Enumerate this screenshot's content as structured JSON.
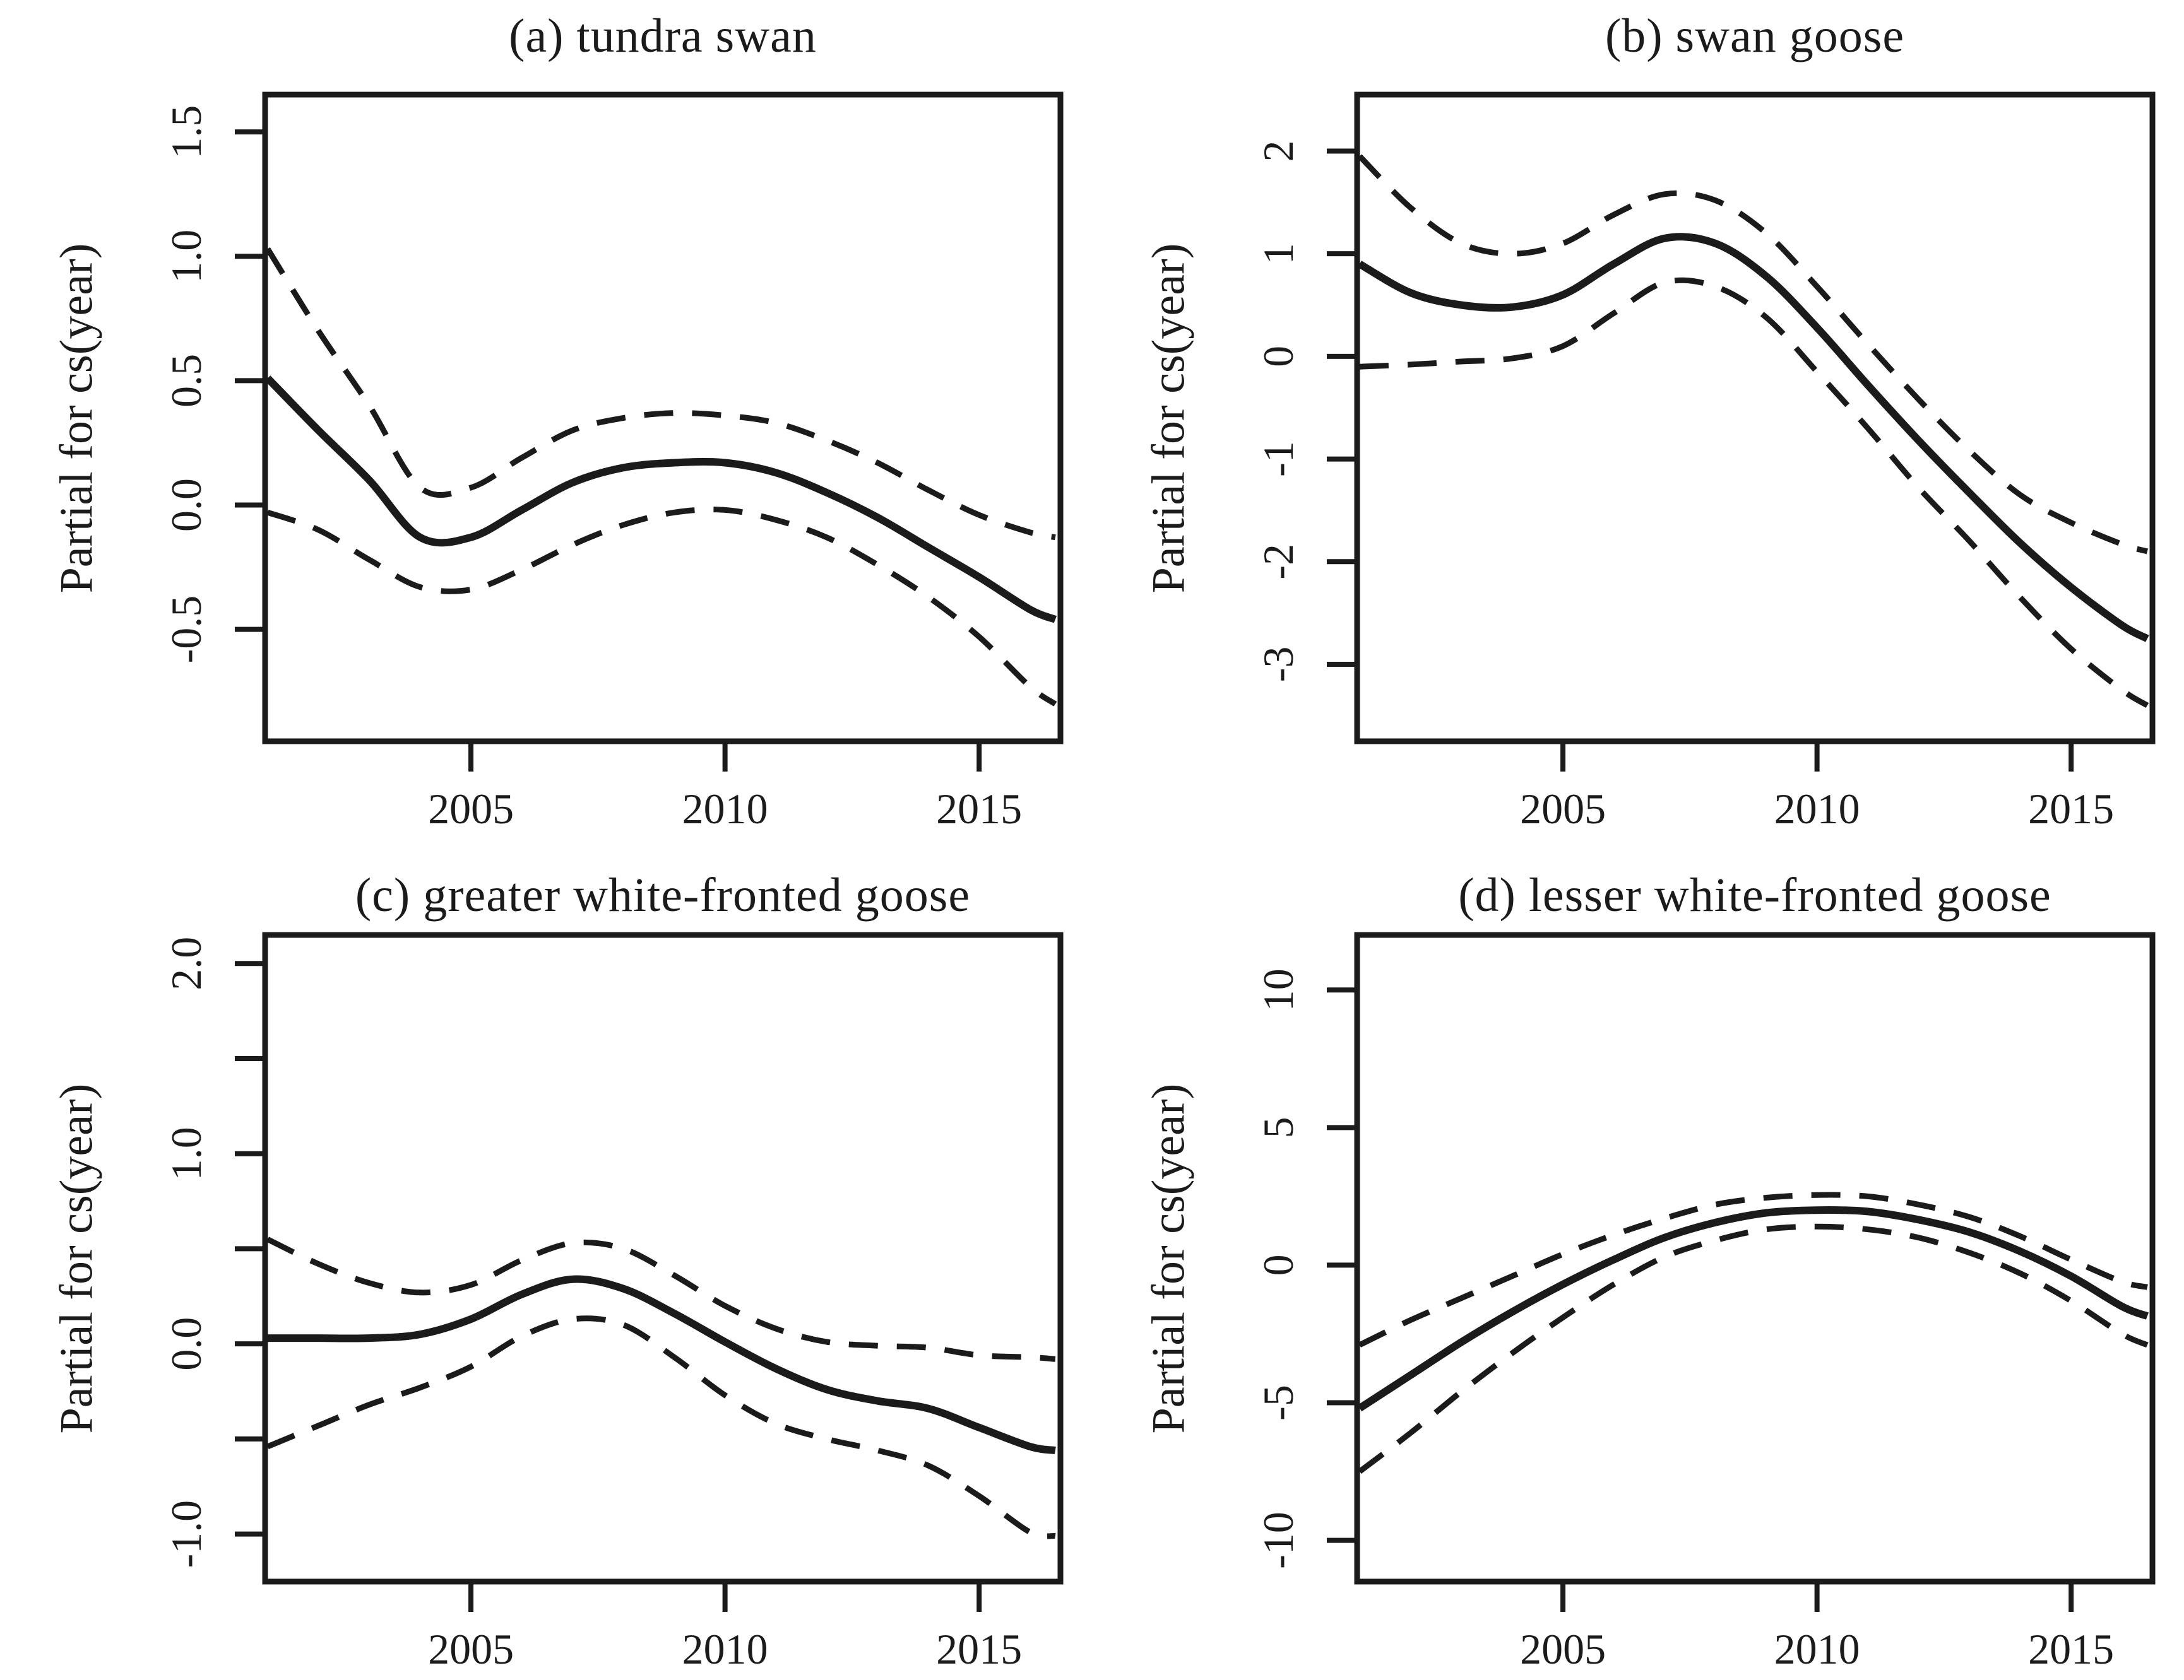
{
  "figure": {
    "background": "#ffffff",
    "line_color": "#1b1b1b",
    "layout": "2x2-grid",
    "shared_y_axis_label": "Partial for cs(year)"
  },
  "chart_data": [
    {
      "type": "line",
      "panel_label": "a",
      "title": "(a) tundra swan",
      "ylabel": "Partial for cs(year)",
      "xlabel": "",
      "grid": false,
      "legend": null,
      "xlim": [
        2000.95,
        2016.6
      ],
      "ylim": [
        -0.95,
        1.65
      ],
      "xticks": [
        {
          "value": 2005,
          "label": "2005"
        },
        {
          "value": 2010,
          "label": "2010"
        },
        {
          "value": 2015,
          "label": "2015"
        }
      ],
      "yticks": [
        {
          "value": 1.5,
          "label": "1.5"
        },
        {
          "value": 1.0,
          "label": "1.0"
        },
        {
          "value": 0.5,
          "label": "0.5"
        },
        {
          "value": 0.0,
          "label": "0.0"
        },
        {
          "value": -0.5,
          "label": "-0.5"
        }
      ],
      "x": [
        2001,
        2002,
        2003,
        2004,
        2005,
        2006,
        2007,
        2008,
        2009,
        2010,
        2011,
        2012,
        2013,
        2014,
        2015,
        2016,
        2016.5
      ],
      "series": [
        {
          "name": "smooth-fit",
          "style": "solid",
          "values": [
            0.51,
            0.3,
            0.1,
            -0.13,
            -0.13,
            -0.02,
            0.09,
            0.15,
            0.17,
            0.17,
            0.13,
            0.05,
            -0.05,
            -0.17,
            -0.29,
            -0.42,
            -0.46
          ]
        },
        {
          "name": "upper-confidence-band",
          "style": "dashed",
          "values": [
            1.03,
            0.7,
            0.4,
            0.07,
            0.07,
            0.19,
            0.3,
            0.35,
            0.37,
            0.36,
            0.33,
            0.26,
            0.17,
            0.06,
            -0.04,
            -0.11,
            -0.13
          ]
        },
        {
          "name": "lower-confidence-band",
          "style": "dashed",
          "values": [
            -0.03,
            -0.1,
            -0.22,
            -0.33,
            -0.34,
            -0.26,
            -0.16,
            -0.08,
            -0.03,
            -0.02,
            -0.06,
            -0.13,
            -0.24,
            -0.37,
            -0.53,
            -0.73,
            -0.8
          ]
        }
      ]
    },
    {
      "type": "line",
      "panel_label": "b",
      "title": "(b) swan goose",
      "ylabel": "Partial for cs(year)",
      "xlabel": "",
      "grid": false,
      "legend": null,
      "xlim": [
        2000.95,
        2016.6
      ],
      "ylim": [
        -3.75,
        2.55
      ],
      "xticks": [
        {
          "value": 2005,
          "label": "2005"
        },
        {
          "value": 2010,
          "label": "2010"
        },
        {
          "value": 2015,
          "label": "2015"
        }
      ],
      "yticks": [
        {
          "value": 2,
          "label": "2"
        },
        {
          "value": 1,
          "label": "1"
        },
        {
          "value": 0,
          "label": "0"
        },
        {
          "value": -1,
          "label": "-1"
        },
        {
          "value": -2,
          "label": "-2"
        },
        {
          "value": -3,
          "label": "-3"
        }
      ],
      "x": [
        2001,
        2002,
        2003,
        2004,
        2005,
        2006,
        2007,
        2008,
        2009,
        2010,
        2011,
        2012,
        2013,
        2014,
        2015,
        2016,
        2016.5
      ],
      "series": [
        {
          "name": "smooth-fit",
          "style": "solid",
          "values": [
            0.9,
            0.62,
            0.5,
            0.48,
            0.6,
            0.9,
            1.15,
            1.1,
            0.78,
            0.28,
            -0.28,
            -0.82,
            -1.33,
            -1.82,
            -2.25,
            -2.62,
            -2.75
          ]
        },
        {
          "name": "upper-confidence-band",
          "style": "dashed",
          "values": [
            1.95,
            1.45,
            1.1,
            1.0,
            1.1,
            1.38,
            1.58,
            1.52,
            1.2,
            0.68,
            0.12,
            -0.42,
            -0.92,
            -1.35,
            -1.62,
            -1.83,
            -1.9
          ]
        },
        {
          "name": "lower-confidence-band",
          "style": "dashed",
          "values": [
            -0.1,
            -0.08,
            -0.05,
            -0.02,
            0.1,
            0.42,
            0.72,
            0.68,
            0.38,
            -0.15,
            -0.7,
            -1.28,
            -1.8,
            -2.35,
            -2.85,
            -3.25,
            -3.4
          ]
        }
      ]
    },
    {
      "type": "line",
      "panel_label": "c",
      "title": "(c) greater white-fronted goose",
      "ylabel": "Partial for cs(year)",
      "xlabel": "",
      "grid": false,
      "legend": null,
      "xlim": [
        2000.95,
        2016.6
      ],
      "ylim": [
        -1.25,
        2.15
      ],
      "xticks": [
        {
          "value": 2005,
          "label": "2005"
        },
        {
          "value": 2010,
          "label": "2010"
        },
        {
          "value": 2015,
          "label": "2015"
        }
      ],
      "yticks": [
        {
          "value": 2.0,
          "label": "2.0"
        },
        {
          "value": 1.5,
          "label": ""
        },
        {
          "value": 1.0,
          "label": "1.0"
        },
        {
          "value": 0.5,
          "label": ""
        },
        {
          "value": 0.0,
          "label": "0.0"
        },
        {
          "value": -0.5,
          "label": ""
        },
        {
          "value": -1.0,
          "label": "-1.0"
        }
      ],
      "x": [
        2001,
        2002,
        2003,
        2004,
        2005,
        2006,
        2007,
        2008,
        2009,
        2010,
        2011,
        2012,
        2013,
        2014,
        2015,
        2016,
        2016.5
      ],
      "series": [
        {
          "name": "smooth-fit",
          "style": "solid",
          "values": [
            0.03,
            0.03,
            0.03,
            0.05,
            0.13,
            0.26,
            0.34,
            0.29,
            0.16,
            0.01,
            -0.13,
            -0.24,
            -0.3,
            -0.34,
            -0.44,
            -0.54,
            -0.56
          ]
        },
        {
          "name": "upper-confidence-band",
          "style": "dashed",
          "values": [
            0.55,
            0.42,
            0.32,
            0.27,
            0.31,
            0.44,
            0.53,
            0.5,
            0.36,
            0.2,
            0.08,
            0.01,
            -0.01,
            -0.02,
            -0.06,
            -0.07,
            -0.08
          ]
        },
        {
          "name": "lower-confidence-band",
          "style": "dashed",
          "values": [
            -0.54,
            -0.43,
            -0.32,
            -0.23,
            -0.12,
            0.04,
            0.13,
            0.1,
            -0.07,
            -0.27,
            -0.42,
            -0.5,
            -0.56,
            -0.64,
            -0.8,
            -0.99,
            -1.01
          ]
        }
      ]
    },
    {
      "type": "line",
      "panel_label": "d",
      "title": "(d) lesser white-fronted goose",
      "ylabel": "Partial for cs(year)",
      "xlabel": "",
      "grid": false,
      "legend": null,
      "xlim": [
        2000.95,
        2016.6
      ],
      "ylim": [
        -11.5,
        12
      ],
      "xticks": [
        {
          "value": 2005,
          "label": "2005"
        },
        {
          "value": 2010,
          "label": "2010"
        },
        {
          "value": 2015,
          "label": "2015"
        }
      ],
      "yticks": [
        {
          "value": 10,
          "label": "10"
        },
        {
          "value": 5,
          "label": "5"
        },
        {
          "value": 0,
          "label": "0"
        },
        {
          "value": -5,
          "label": "-5"
        },
        {
          "value": -10,
          "label": "-10"
        }
      ],
      "x": [
        2001,
        2002,
        2003,
        2004,
        2005,
        2006,
        2007,
        2008,
        2009,
        2010,
        2011,
        2012,
        2013,
        2014,
        2015,
        2016,
        2016.5
      ],
      "series": [
        {
          "name": "smooth-fit",
          "style": "solid",
          "values": [
            -5.2,
            -4.0,
            -2.8,
            -1.7,
            -0.7,
            0.2,
            1.0,
            1.55,
            1.9,
            2.0,
            1.95,
            1.65,
            1.2,
            0.5,
            -0.4,
            -1.5,
            -1.85
          ]
        },
        {
          "name": "upper-confidence-band",
          "style": "dashed",
          "values": [
            -2.9,
            -2.0,
            -1.2,
            -0.4,
            0.4,
            1.1,
            1.7,
            2.2,
            2.45,
            2.55,
            2.5,
            2.2,
            1.75,
            1.05,
            0.2,
            -0.6,
            -0.8
          ]
        },
        {
          "name": "lower-confidence-band",
          "style": "dashed",
          "values": [
            -7.5,
            -6.1,
            -4.6,
            -3.2,
            -1.9,
            -0.7,
            0.3,
            0.9,
            1.3,
            1.4,
            1.3,
            1.0,
            0.45,
            -0.3,
            -1.3,
            -2.5,
            -2.9
          ]
        }
      ]
    }
  ]
}
